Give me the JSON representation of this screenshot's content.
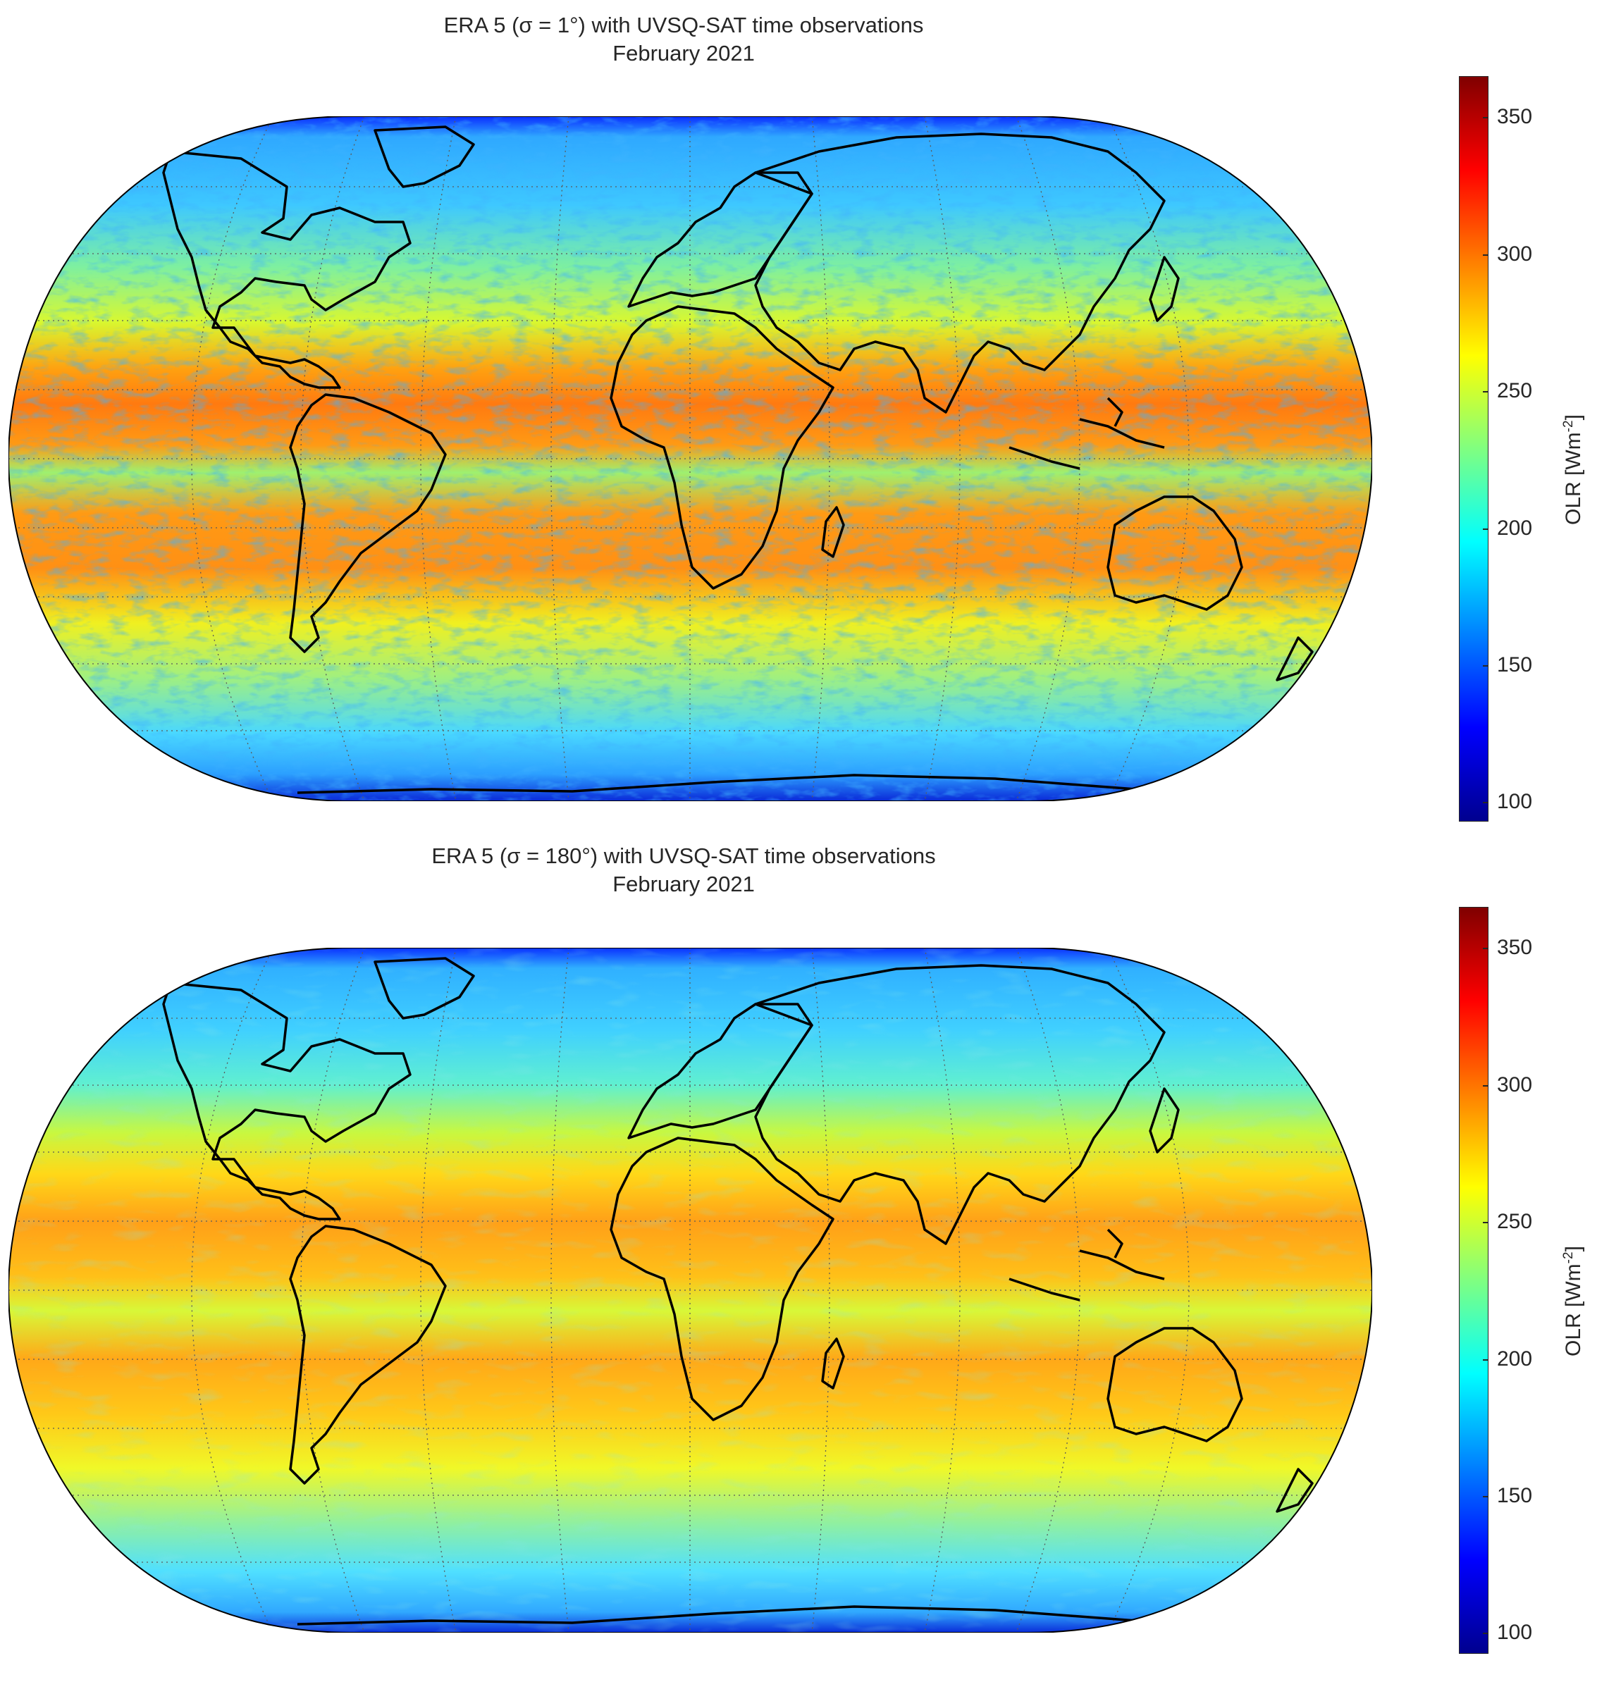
{
  "panels": [
    {
      "title_line1": "ERA 5 (σ = 1°) with UVSQ-SAT time observations",
      "title_line2": "February 2021",
      "colorbar": {
        "label": "OLR [Wm",
        "label_sup": "-2",
        "label_close": "]",
        "ticks": [
          "350",
          "300",
          "250",
          "200",
          "150",
          "100"
        ],
        "range": [
          95,
          365
        ]
      }
    },
    {
      "title_line1": "ERA 5 (σ = 180°) with UVSQ-SAT time observations",
      "title_line2": "February 2021",
      "colorbar": {
        "label": "OLR [Wm",
        "label_sup": "-2",
        "label_close": "]",
        "ticks": [
          "350",
          "300",
          "250",
          "200",
          "150",
          "100"
        ],
        "range": [
          95,
          365
        ]
      }
    }
  ],
  "colormap": "jet",
  "colors": {
    "tropics": "#ff8a1a",
    "midlat": "#ffee20",
    "high_lat": "#40d8ff",
    "polar": "#0a3cff",
    "coastline": "#000000",
    "grid": "#6a6a6a"
  }
}
